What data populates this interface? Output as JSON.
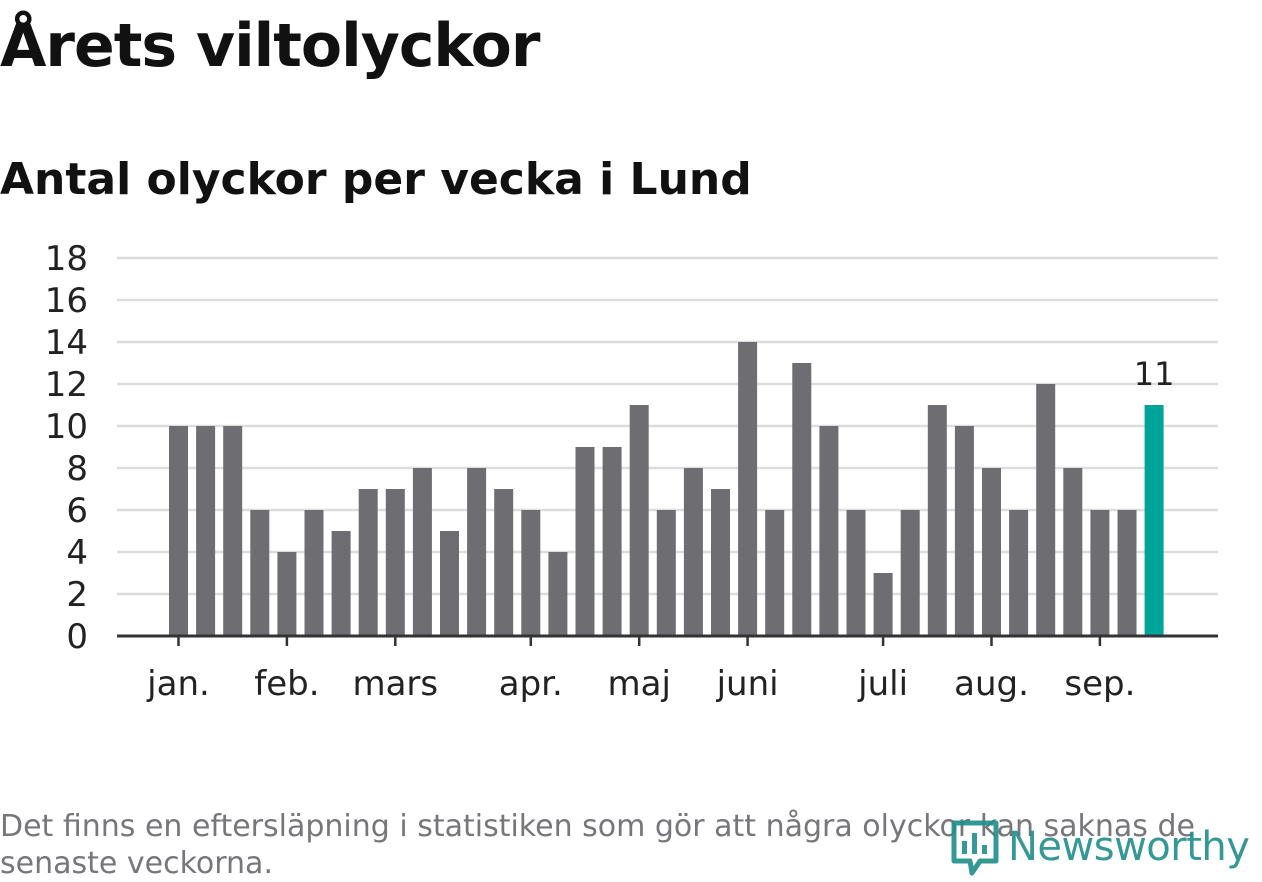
{
  "title": "Årets viltolyckor",
  "subtitle": "Antal olyckor per vecka i Lund",
  "footnote": "Det finns en eftersläpning i statistiken som gör att några olyckor kan saknas de senaste veckorna.",
  "logo_text": "Newsworthy",
  "colors": {
    "bar": "#6e6d72",
    "highlight": "#00a59a",
    "grid": "#dddddd",
    "axis": "#333333",
    "logo": "#1f8f8b"
  },
  "chart_data": {
    "type": "bar",
    "title": "Årets viltolyckor",
    "subtitle": "Antal olyckor per vecka i Lund",
    "values": [
      10,
      10,
      10,
      6,
      4,
      6,
      5,
      7,
      7,
      8,
      5,
      8,
      7,
      6,
      4,
      9,
      9,
      11,
      6,
      8,
      7,
      14,
      6,
      13,
      10,
      6,
      3,
      6,
      11,
      10,
      8,
      6,
      12,
      8,
      6,
      6,
      11
    ],
    "highlight_index": 36,
    "highlight_label": "11",
    "ylim": [
      0,
      18
    ],
    "yticks": [
      0,
      2,
      4,
      6,
      8,
      10,
      12,
      14,
      16,
      18
    ],
    "month_labels": [
      {
        "label": "jan.",
        "bar_index": 0
      },
      {
        "label": "feb.",
        "bar_index": 4
      },
      {
        "label": "mars",
        "bar_index": 8
      },
      {
        "label": "apr.",
        "bar_index": 13
      },
      {
        "label": "maj",
        "bar_index": 17
      },
      {
        "label": "juni",
        "bar_index": 21
      },
      {
        "label": "juli",
        "bar_index": 26
      },
      {
        "label": "aug.",
        "bar_index": 30
      },
      {
        "label": "sep.",
        "bar_index": 34
      }
    ],
    "grid": true
  }
}
